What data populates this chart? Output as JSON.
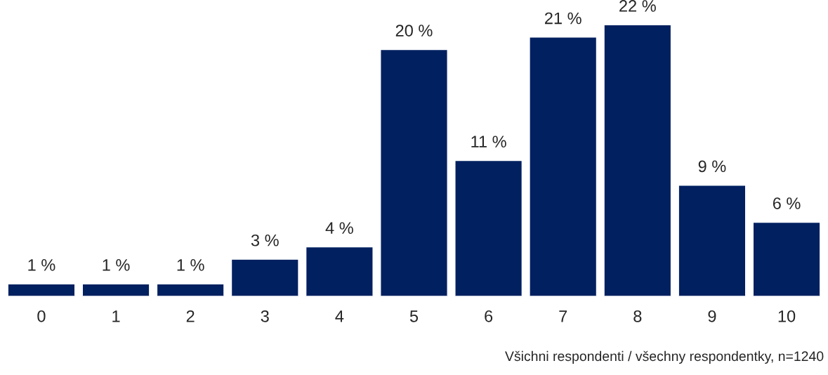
{
  "chart_data": {
    "type": "bar",
    "categories": [
      "0",
      "1",
      "2",
      "3",
      "4",
      "5",
      "6",
      "7",
      "8",
      "9",
      "10"
    ],
    "values": [
      1,
      1,
      1,
      3,
      4,
      20,
      11,
      21,
      22,
      9,
      6
    ],
    "value_labels": [
      "1 %",
      "1 %",
      "1 %",
      "3 %",
      "4 %",
      "20 %",
      "11 %",
      "21 %",
      "22 %",
      "9 %",
      "6 %"
    ],
    "color": "#002060",
    "grid": false,
    "annotations": [
      "Všichni respondenti / všechny respondentky, n=1240"
    ]
  }
}
